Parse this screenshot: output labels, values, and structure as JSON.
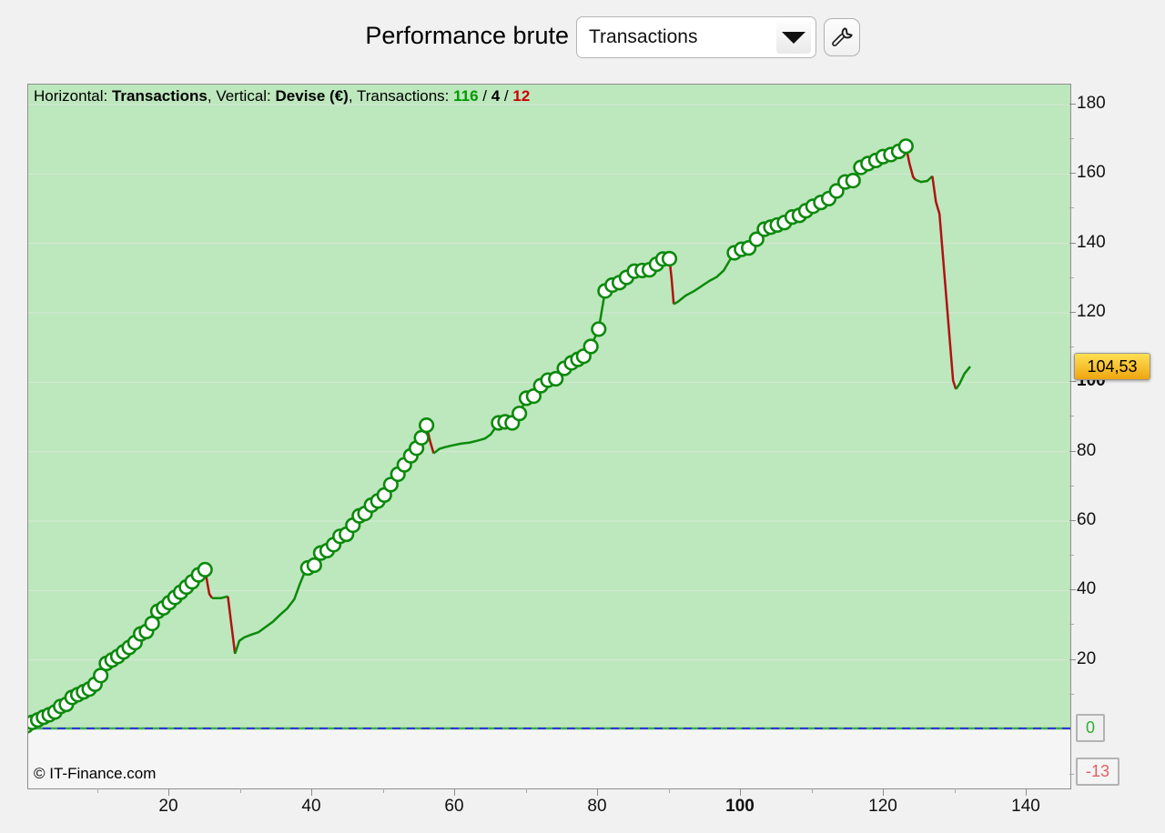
{
  "title": {
    "label": "Performance brute",
    "dropdown_value": "Transactions"
  },
  "header": {
    "horizontal_label": "Horizontal: ",
    "horizontal_value": "Transactions",
    "sep1": ", ",
    "vertical_label": "Vertical: ",
    "vertical_value": "Devise (€)",
    "sep2": ", ",
    "transactions_label": "Transactions: ",
    "wins": "116",
    "slash": " / ",
    "neutral": "4",
    "losses": "12"
  },
  "footer": {
    "copyright": "© IT-Finance.com"
  },
  "price_tag": {
    "value": "104,53"
  },
  "axes": {
    "zero_label": "0",
    "drawdown_label": "-13"
  },
  "colors": {
    "plot_bg_green": "#bde7bd",
    "grid_line": "#d6e8d6",
    "line_green": "#0b8a0b",
    "loss_red": "#b01212",
    "baseline_green": "#3cab55",
    "zero_dash_blue": "#3232d8",
    "wins_text": "#009900",
    "losses_text": "#cc0000",
    "tag_fill": "#f5b81a"
  },
  "chart_data": {
    "type": "line",
    "title": "Performance brute",
    "xlabel": "Transactions",
    "ylabel": "Devise (€)",
    "xlim": [
      0,
      146
    ],
    "ylim": [
      -17,
      186
    ],
    "grid": "horizontal-only",
    "legend": "none",
    "last_value": 104.53,
    "zero_line": 0,
    "drawdown_level": -13,
    "counts": {
      "wins": 116,
      "breakeven": 4,
      "losses": 12
    },
    "y_ticks_major": [
      {
        "v": 180,
        "label": "180"
      },
      {
        "v": 160,
        "label": "160"
      },
      {
        "v": 140,
        "label": "140"
      },
      {
        "v": 120,
        "label": "120"
      },
      {
        "v": 100,
        "label": "100",
        "bold": true
      },
      {
        "v": 80,
        "label": "80"
      },
      {
        "v": 60,
        "label": "60"
      },
      {
        "v": 40,
        "label": "40"
      },
      {
        "v": 20,
        "label": "20"
      }
    ],
    "y_ticks_minor": [
      170,
      150,
      130,
      110,
      90,
      70,
      50,
      30,
      10,
      -13
    ],
    "x_ticks_major": [
      {
        "t": 20,
        "label": "20"
      },
      {
        "t": 40,
        "label": "40"
      },
      {
        "t": 60,
        "label": "60"
      },
      {
        "t": 80,
        "label": "80"
      },
      {
        "t": 100,
        "label": "100",
        "bold": true
      },
      {
        "t": 120,
        "label": "120"
      },
      {
        "t": 140,
        "label": "140"
      }
    ],
    "x_ticks_minor": [
      10,
      30,
      50,
      70,
      90,
      110,
      130
    ],
    "segments": [
      {
        "kind": "gain",
        "markers": true,
        "points": [
          [
            0,
            1
          ],
          [
            0.8,
            2
          ],
          [
            1.6,
            2.7
          ],
          [
            2.4,
            3.5
          ],
          [
            3.2,
            4.2
          ],
          [
            4,
            5
          ],
          [
            4.8,
            6.6
          ],
          [
            5.6,
            7.2
          ],
          [
            6.4,
            9.2
          ],
          [
            7.2,
            10
          ],
          [
            8,
            10.8
          ],
          [
            8.8,
            11.6
          ],
          [
            9.6,
            13
          ],
          [
            10.4,
            15.5
          ],
          [
            11.2,
            19
          ],
          [
            12,
            20
          ],
          [
            12.8,
            21
          ],
          [
            13.6,
            22.3
          ],
          [
            14.4,
            23.6
          ],
          [
            15.2,
            25
          ],
          [
            16,
            27.5
          ],
          [
            16.8,
            28.2
          ],
          [
            17.6,
            30.5
          ],
          [
            18.4,
            34
          ],
          [
            19.2,
            35
          ],
          [
            20,
            36.5
          ],
          [
            20.8,
            38
          ],
          [
            21.6,
            39.5
          ],
          [
            22.4,
            41
          ],
          [
            23.2,
            42.5
          ],
          [
            24.1,
            44.5
          ],
          [
            25,
            46
          ]
        ]
      },
      {
        "kind": "loss",
        "markers": false,
        "points": [
          [
            25,
            46
          ],
          [
            25.6,
            39
          ],
          [
            26,
            37.8
          ]
        ]
      },
      {
        "kind": "flat",
        "markers": false,
        "points": [
          [
            26,
            37.8
          ],
          [
            27.2,
            37.8
          ],
          [
            28.2,
            38.3
          ]
        ]
      },
      {
        "kind": "loss",
        "markers": false,
        "points": [
          [
            28.2,
            38.3
          ],
          [
            28.7,
            30
          ],
          [
            29.2,
            21.8
          ]
        ]
      },
      {
        "kind": "flat",
        "markers": false,
        "points": [
          [
            29.2,
            21.8
          ],
          [
            29.8,
            25.5
          ],
          [
            30.5,
            26.5
          ],
          [
            31.5,
            27.3
          ],
          [
            32.5,
            28
          ],
          [
            33.5,
            29.5
          ],
          [
            34.5,
            31
          ],
          [
            35.5,
            33
          ],
          [
            36.5,
            34.8
          ],
          [
            37.5,
            37.5
          ],
          [
            38.3,
            42
          ],
          [
            39,
            45.5
          ]
        ]
      },
      {
        "kind": "gain",
        "markers": true,
        "points": [
          [
            39.4,
            46.5
          ],
          [
            40.3,
            47.3
          ],
          [
            41.2,
            50.8
          ],
          [
            42.1,
            51.5
          ],
          [
            43,
            53.2
          ],
          [
            43.9,
            55.6
          ],
          [
            44.8,
            56.2
          ],
          [
            45.7,
            58.8
          ],
          [
            46.6,
            61.5
          ],
          [
            47.4,
            62.2
          ],
          [
            48.3,
            64.6
          ],
          [
            49.2,
            65.8
          ],
          [
            50.1,
            67.5
          ],
          [
            51,
            70.5
          ],
          [
            52,
            73.5
          ],
          [
            52.9,
            76.2
          ],
          [
            53.8,
            78.8
          ],
          [
            54.6,
            81
          ],
          [
            55.3,
            84
          ],
          [
            56,
            87.6
          ]
        ]
      },
      {
        "kind": "loss",
        "markers": false,
        "points": [
          [
            56,
            87.6
          ],
          [
            56.5,
            83
          ],
          [
            57,
            79.5
          ]
        ]
      },
      {
        "kind": "flat",
        "markers": false,
        "points": [
          [
            57,
            79.5
          ],
          [
            57.8,
            80.8
          ],
          [
            58.6,
            81.3
          ],
          [
            59.6,
            81.8
          ],
          [
            60.8,
            82.3
          ],
          [
            62,
            82.6
          ],
          [
            63.2,
            83.2
          ],
          [
            64.2,
            83.8
          ],
          [
            65,
            85
          ],
          [
            65.6,
            86.8
          ]
        ]
      },
      {
        "kind": "gain",
        "markers": true,
        "points": [
          [
            66.1,
            88.3
          ],
          [
            67,
            88.6
          ],
          [
            68,
            88.3
          ],
          [
            69,
            91
          ],
          [
            70,
            95.4
          ],
          [
            71,
            96
          ],
          [
            72,
            99
          ],
          [
            73,
            100.6
          ],
          [
            74.1,
            101
          ],
          [
            75.3,
            104
          ],
          [
            76.3,
            105.6
          ],
          [
            77.2,
            106.6
          ],
          [
            78,
            107.5
          ],
          [
            79,
            110.3
          ],
          [
            80.1,
            115.3
          ],
          [
            81,
            126.3
          ],
          [
            82,
            128
          ],
          [
            83,
            128.7
          ],
          [
            84,
            130.2
          ],
          [
            85.1,
            132
          ],
          [
            86.2,
            132.2
          ],
          [
            87.2,
            132.4
          ],
          [
            88.2,
            134
          ],
          [
            89.1,
            135.5
          ],
          [
            90,
            135.6
          ]
        ]
      },
      {
        "kind": "loss",
        "markers": false,
        "points": [
          [
            90,
            135.6
          ],
          [
            90.3,
            130
          ],
          [
            90.6,
            122.5
          ]
        ]
      },
      {
        "kind": "flat",
        "markers": false,
        "points": [
          [
            90.6,
            122.5
          ],
          [
            91.2,
            123.2
          ],
          [
            92.3,
            125
          ],
          [
            93.4,
            126.2
          ],
          [
            94.5,
            127.7
          ],
          [
            95.6,
            129.2
          ],
          [
            96.6,
            130.3
          ],
          [
            97.6,
            132.2
          ],
          [
            98.4,
            135
          ]
        ]
      },
      {
        "kind": "gain",
        "markers": true,
        "points": [
          [
            99.1,
            137.3
          ],
          [
            100.1,
            138.3
          ],
          [
            101.1,
            138.7
          ],
          [
            102.2,
            141.2
          ],
          [
            103.3,
            144.1
          ],
          [
            104.2,
            144.7
          ],
          [
            105.1,
            145.3
          ],
          [
            106.1,
            146
          ],
          [
            107.2,
            147.6
          ],
          [
            108.2,
            148.1
          ],
          [
            109.1,
            149.4
          ],
          [
            110.1,
            150.7
          ],
          [
            111.2,
            151.8
          ],
          [
            112.3,
            152.9
          ],
          [
            113.4,
            155.1
          ],
          [
            114.6,
            157.7
          ],
          [
            115.7,
            158.1
          ],
          [
            116.8,
            161.9
          ],
          [
            117.8,
            163
          ],
          [
            118.9,
            163.9
          ],
          [
            119.9,
            165
          ],
          [
            121,
            165.6
          ],
          [
            122.1,
            166.5
          ],
          [
            123.1,
            168
          ]
        ]
      },
      {
        "kind": "loss",
        "markers": false,
        "points": [
          [
            123.1,
            168
          ],
          [
            123.6,
            163
          ],
          [
            124.1,
            159.2
          ],
          [
            124.4,
            158.4
          ]
        ]
      },
      {
        "kind": "flat",
        "markers": false,
        "points": [
          [
            124.4,
            158.4
          ],
          [
            125.2,
            157.7
          ],
          [
            126.1,
            158
          ],
          [
            126.8,
            159.4
          ]
        ]
      },
      {
        "kind": "loss",
        "markers": false,
        "points": [
          [
            126.8,
            159.4
          ],
          [
            127.3,
            152
          ],
          [
            127.8,
            148.5
          ],
          [
            129.7,
            100.5
          ],
          [
            130.1,
            98
          ]
        ]
      },
      {
        "kind": "flat",
        "markers": false,
        "points": [
          [
            130.1,
            98
          ],
          [
            130.6,
            99.5
          ],
          [
            131.3,
            102.5
          ],
          [
            132.1,
            104.53
          ]
        ]
      }
    ]
  }
}
